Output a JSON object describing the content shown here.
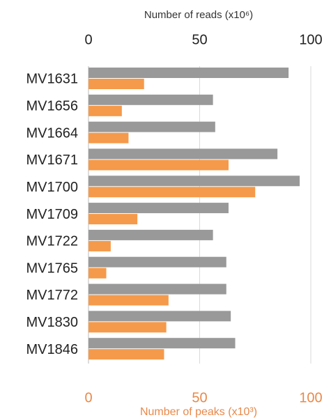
{
  "chart_data": {
    "type": "bar",
    "xlabel": "Number of reads (x10⁶)",
    "x2label": "Number of peaks (x10³)",
    "categories": [
      "MV1631",
      "MV1656",
      "MV1664",
      "MV1671",
      "MV1700",
      "MV1709",
      "MV1722",
      "MV1765",
      "MV1772",
      "MV1830",
      "MV1846"
    ],
    "series": [
      {
        "color": "#999999",
        "axis": "x",
        "values": [
          90,
          56,
          57,
          85,
          95,
          63,
          56,
          62,
          62,
          64,
          66
        ]
      },
      {
        "color": "#f59a4a",
        "axis": "x2",
        "values": [
          25,
          15,
          18,
          63,
          75,
          22,
          10,
          8,
          36,
          35,
          34
        ]
      }
    ],
    "xlim": [
      0,
      100
    ],
    "xticks": [
      0,
      50,
      100
    ],
    "x2lim": [
      0,
      100
    ],
    "x2ticks": [
      0,
      50,
      100
    ],
    "x2color": "#e8894a",
    "grid": true
  }
}
